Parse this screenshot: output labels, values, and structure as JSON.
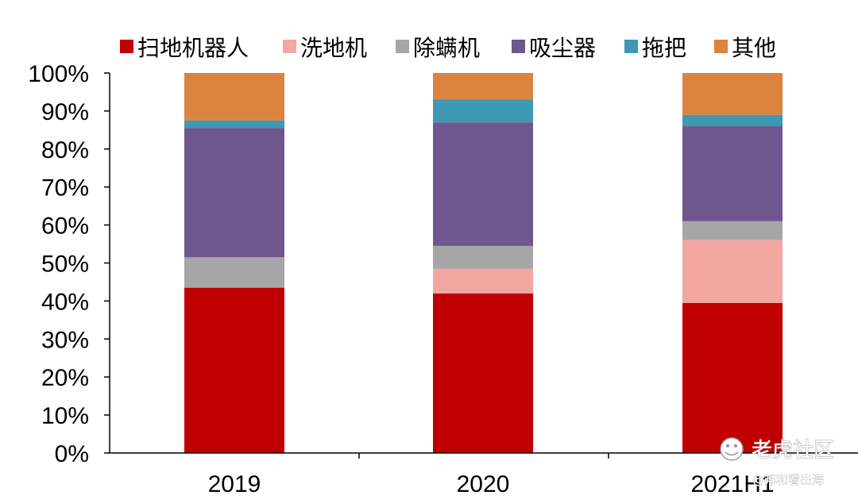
{
  "chart_data": {
    "type": "bar",
    "stacked": true,
    "categories": [
      "2019",
      "2020",
      "2021H1"
    ],
    "series": [
      {
        "name": "扫地机器人",
        "color": "#C00000",
        "values": [
          43.5,
          42.0,
          39.5
        ]
      },
      {
        "name": "洗地机",
        "color": "#F4A7A0",
        "values": [
          0.0,
          6.5,
          16.5
        ]
      },
      {
        "name": "除螨机",
        "color": "#A6A6A6",
        "values": [
          8.0,
          6.0,
          5.0
        ]
      },
      {
        "name": "吸尘器",
        "color": "#6F568E",
        "values": [
          34.0,
          32.5,
          25.0
        ]
      },
      {
        "name": "拖把",
        "color": "#3D99B4",
        "values": [
          2.0,
          6.0,
          3.0
        ]
      },
      {
        "name": "其他",
        "color": "#DA843F",
        "values": [
          12.5,
          7.0,
          11.0
        ]
      }
    ],
    "yticks": [
      "0%",
      "10%",
      "20%",
      "30%",
      "40%",
      "50%",
      "60%",
      "70%",
      "80%",
      "90%",
      "100%"
    ],
    "ylim": [
      0,
      100
    ],
    "title": "",
    "xlabel": "",
    "ylabel": "",
    "legend_position": "top"
  },
  "watermark": {
    "main": "老虎社区",
    "sub": "@邦和看出海"
  }
}
